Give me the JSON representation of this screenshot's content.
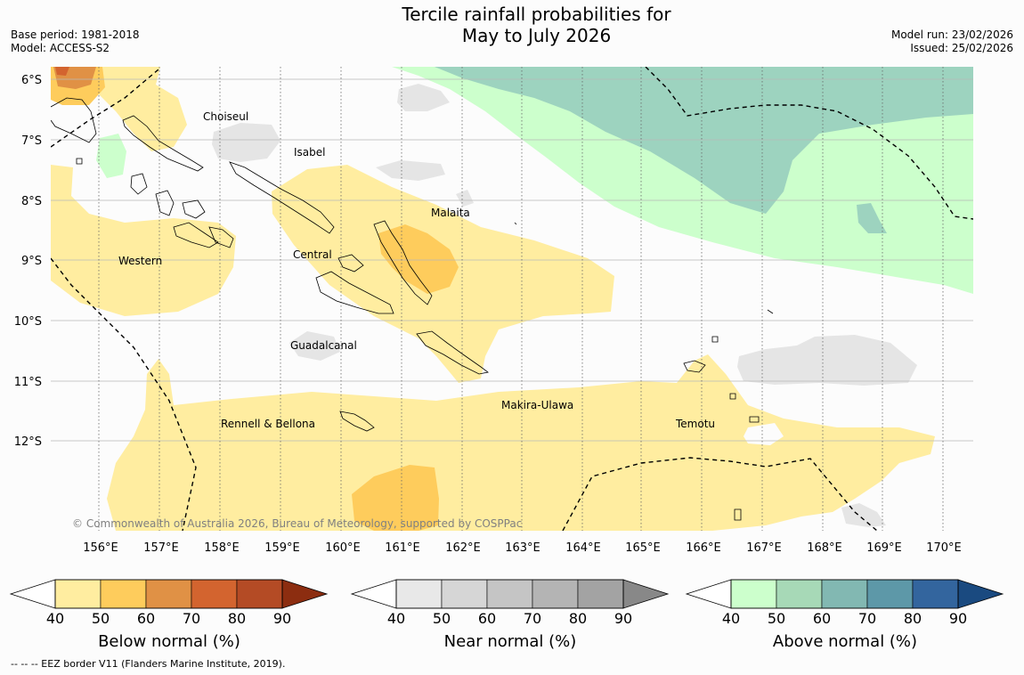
{
  "title_line1": "Tercile rainfall probabilities for",
  "title_line2": "May to July 2026",
  "base_period": "Base period: 1981-2018",
  "model": "Model: ACCESS-S2",
  "model_run": "Model run: 23/02/2026",
  "issued": "Issued: 25/02/2026",
  "copyright": "© Commonwealth of Australia 2026, Bureau of Meteorology, supported by COSPPac",
  "footer_note": "-- -- -- EEZ border V11 (Flanders Marine Institute, 2019).",
  "latitude_labels": [
    "6°S",
    "7°S",
    "8°S",
    "9°S",
    "10°S",
    "11°S",
    "12°S"
  ],
  "longitude_labels": [
    "156°E",
    "157°E",
    "158°E",
    "159°E",
    "160°E",
    "161°E",
    "162°E",
    "163°E",
    "164°E",
    "165°E",
    "166°E",
    "167°E",
    "168°E",
    "169°E",
    "170°E"
  ],
  "province_labels": {
    "choiseul": "Choiseul",
    "isabel": "Isabel",
    "malaita": "Malaita",
    "western": "Western",
    "central": "Central",
    "guadalcanal": "Guadalcanal",
    "makira_ulawa": "Makira-Ulawa",
    "rennell_bellona": "Rennell & Bellona",
    "temotu": "Temotu"
  },
  "legends": [
    {
      "title": "Below normal (%)",
      "ticks": [
        "40",
        "50",
        "60",
        "70",
        "80",
        "90"
      ],
      "colors": [
        "#ffeda0",
        "#fecc5c",
        "#e09145",
        "#d3642f",
        "#b44b25",
        "#8c2d10"
      ]
    },
    {
      "title": "Near normal (%)",
      "ticks": [
        "40",
        "50",
        "60",
        "70",
        "80",
        "90"
      ],
      "colors": [
        "#e8e8e8",
        "#d6d6d6",
        "#c5c5c5",
        "#b4b4b4",
        "#a3a3a3",
        "#888888"
      ]
    },
    {
      "title": "Above normal (%)",
      "ticks": [
        "40",
        "50",
        "60",
        "70",
        "80",
        "90"
      ],
      "colors": [
        "#ccffcc",
        "#a7d9b7",
        "#82b8b2",
        "#5d98a8",
        "#33659e",
        "#1a4a80"
      ]
    }
  ]
}
